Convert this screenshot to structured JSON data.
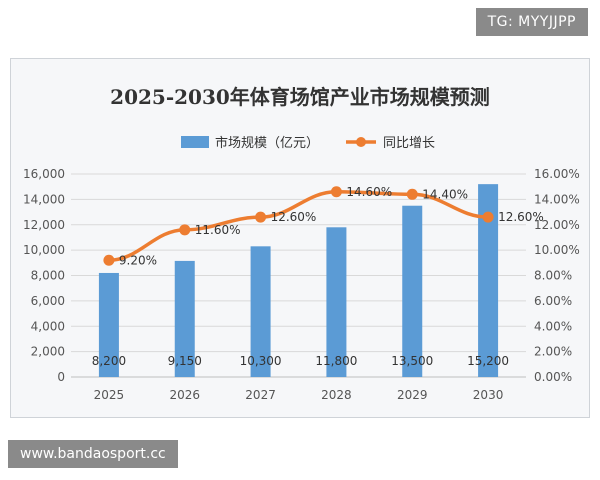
{
  "tg_badge": "TG: MYYJJPP",
  "url_badge": "www.bandaosport.cc",
  "colors": {
    "bar": "#5b9bd5",
    "line": "#ed7d31",
    "grid": "#d9d9d9",
    "text": "#555555"
  },
  "chart_data": {
    "type": "bar",
    "title": "2025-2030年体育场馆产业市场规模预测",
    "categories": [
      "2025",
      "2026",
      "2027",
      "2028",
      "2029",
      "2030"
    ],
    "series": [
      {
        "name": "市场规模（亿元）",
        "type": "bar",
        "axis": "left",
        "values": [
          8200,
          9150,
          10300,
          11800,
          13500,
          15200
        ],
        "labels": [
          "8,200",
          "9,150",
          "10,300",
          "11,800",
          "13,500",
          "15,200"
        ]
      },
      {
        "name": "同比增长",
        "type": "line",
        "axis": "right",
        "values": [
          9.2,
          11.6,
          12.6,
          14.6,
          14.4,
          12.6
        ],
        "labels": [
          "9.20%",
          "11.60%",
          "12.60%",
          "14.60%",
          "14.40%",
          "12.60%"
        ]
      }
    ],
    "y_left": {
      "ylim": [
        0,
        16000
      ],
      "ticks": [
        "0",
        "2,000",
        "4,000",
        "6,000",
        "8,000",
        "10,000",
        "12,000",
        "14,000",
        "16,000"
      ]
    },
    "y_right": {
      "ylim": [
        0,
        16
      ],
      "ticks": [
        "0.00%",
        "2.00%",
        "4.00%",
        "6.00%",
        "8.00%",
        "10.00%",
        "12.00%",
        "14.00%",
        "16.00%"
      ]
    },
    "grid": true,
    "legend_position": "top"
  }
}
